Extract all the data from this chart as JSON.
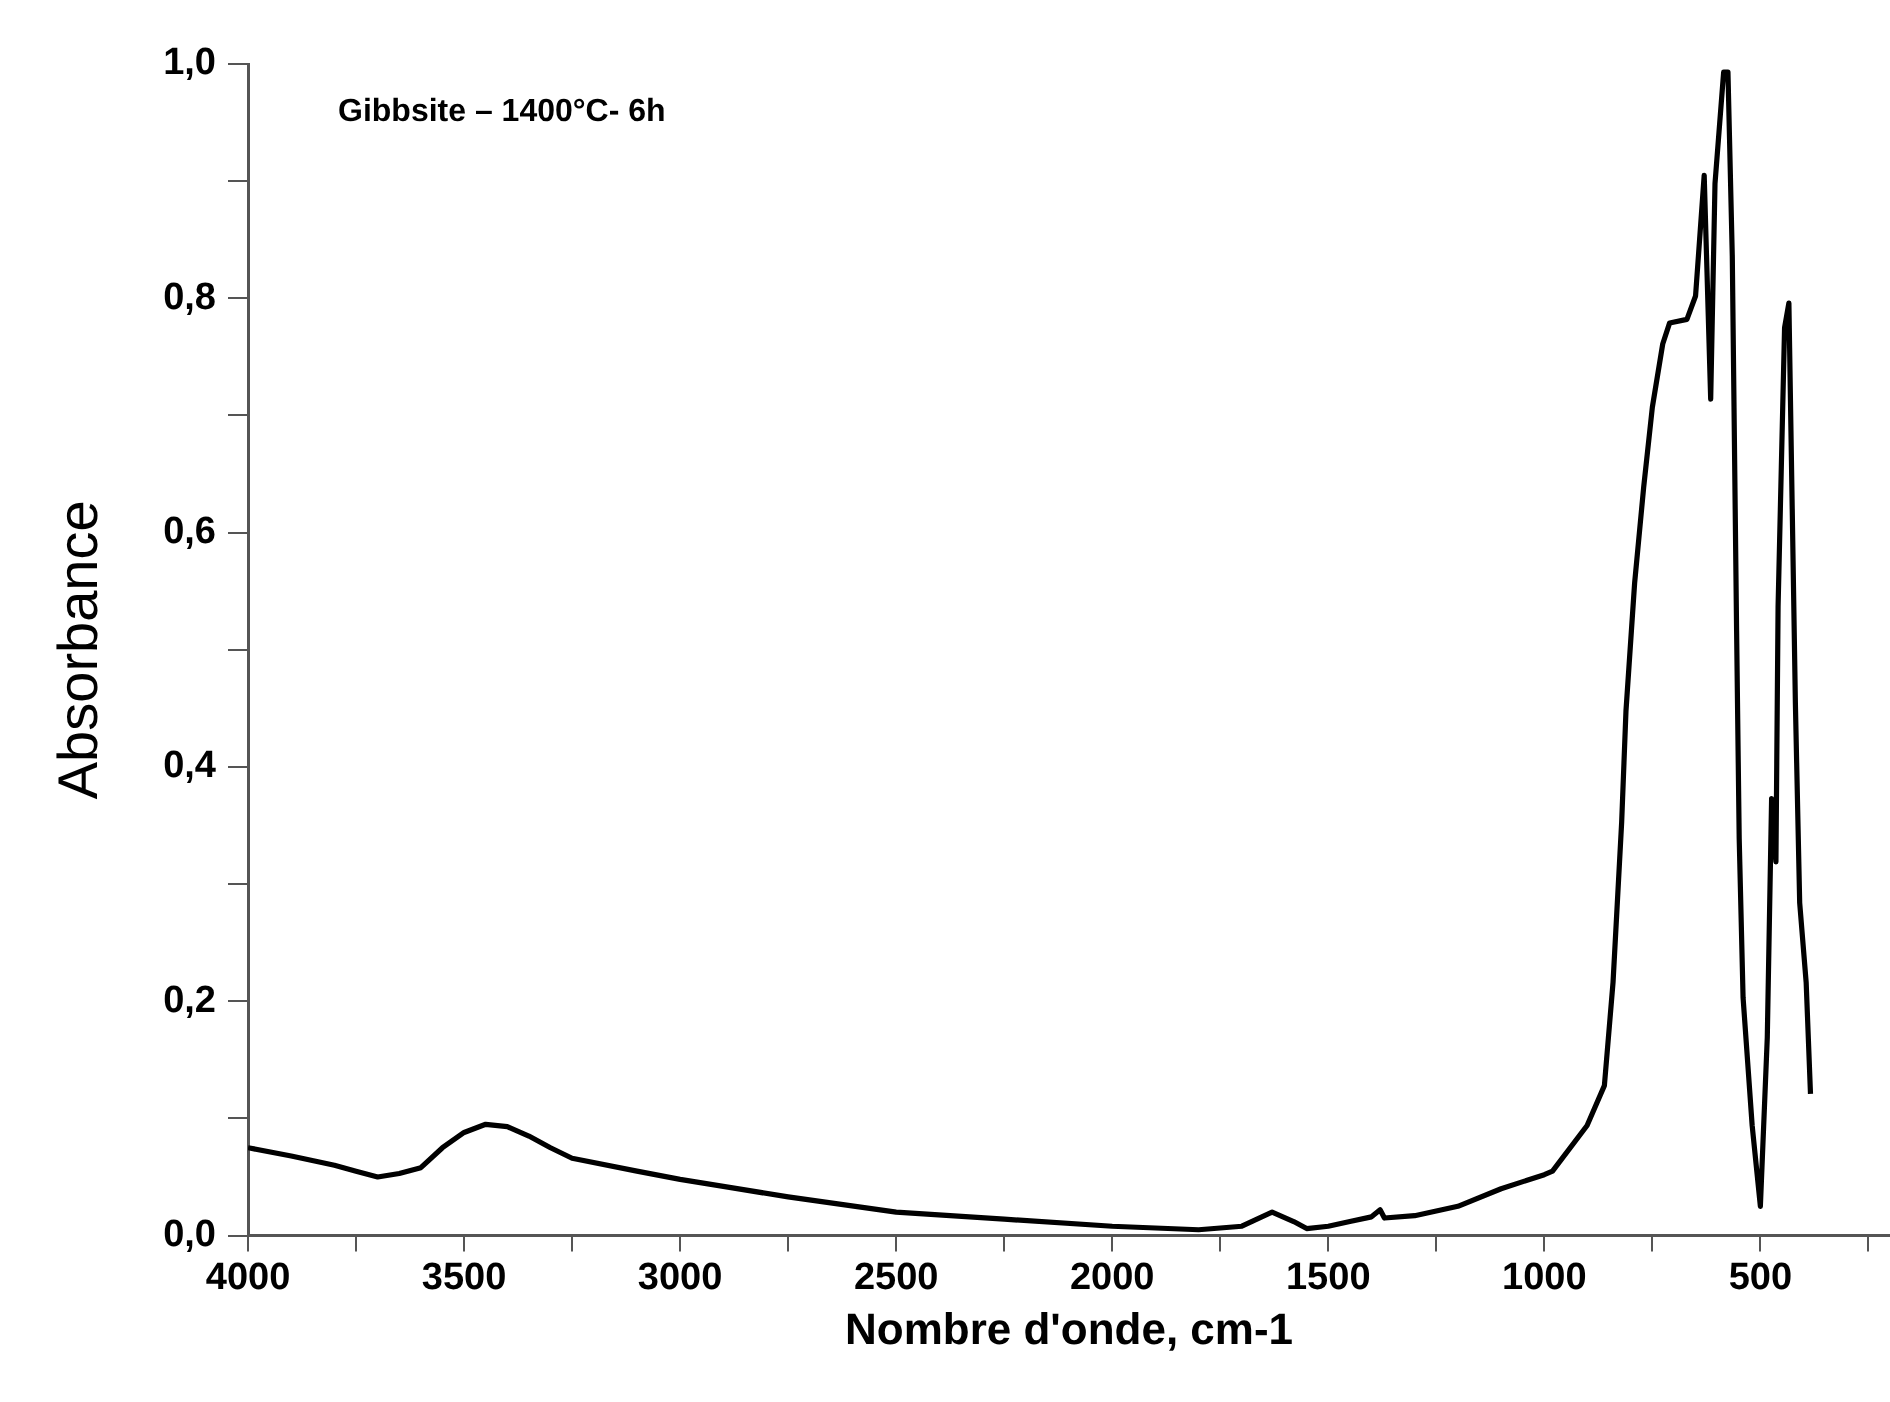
{
  "chart_data": {
    "type": "line",
    "title": "Gibbsite – 1400°C- 6h",
    "xlabel": "Nombre d'onde, cm-1",
    "ylabel": "Absorbance",
    "xlim": [
      4000,
      200
    ],
    "ylim": [
      0,
      1.0
    ],
    "xticks": [
      4000,
      {
        "value": 3750,
        "label": null
      },
      3500,
      {
        "value": 3250,
        "label": null
      },
      3000,
      {
        "value": 2750,
        "label": null
      },
      2500,
      {
        "value": 2250,
        "label": null
      },
      2000,
      {
        "value": 1750,
        "label": null
      },
      1500,
      {
        "value": 1250,
        "label": null
      },
      1000,
      {
        "value": 750,
        "label": null
      },
      500,
      {
        "value": 250,
        "label": null
      }
    ],
    "yticks": [
      {
        "value": 0,
        "label": "0,0"
      },
      {
        "value": 0.1,
        "label": null
      },
      {
        "value": 0.2,
        "label": "0,2"
      },
      {
        "value": 0.3,
        "label": null
      },
      {
        "value": 0.4,
        "label": "0,4"
      },
      {
        "value": 0.5,
        "label": null
      },
      {
        "value": 0.6,
        "label": "0,6"
      },
      {
        "value": 0.7,
        "label": null
      },
      {
        "value": 0.8,
        "label": "0,8"
      },
      {
        "value": 0.9,
        "label": null
      },
      {
        "value": 1.0,
        "label": "1,0"
      }
    ],
    "grid": false,
    "legend": false,
    "marker": "none",
    "line_style": "solid",
    "x": [
      4000,
      3900,
      3800,
      3750,
      3700,
      3650,
      3600,
      3550,
      3500,
      3450,
      3400,
      3350,
      3300,
      3250,
      3100,
      3000,
      2900,
      2750,
      2500,
      2250,
      2000,
      1800,
      1700,
      1630,
      1580,
      1550,
      1500,
      1450,
      1400,
      1380,
      1370,
      1300,
      1200,
      1100,
      1000,
      981,
      901,
      861,
      841,
      821,
      811,
      791,
      770,
      750,
      726,
      710,
      670,
      650,
      630,
      615,
      605,
      585,
      575,
      565,
      555,
      549,
      540,
      519,
      500,
      484,
      474,
      464,
      459,
      444,
      434,
      419,
      409,
      394,
      384
    ],
    "series": [
      {
        "color": "#000000",
        "values": [
          0.075,
          0.068,
          0.06,
          0.055,
          0.05,
          0.053,
          0.058,
          0.075,
          0.088,
          0.095,
          0.093,
          0.085,
          0.075,
          0.066,
          0.055,
          0.048,
          0.042,
          0.033,
          0.02,
          0.014,
          0.008,
          0.005,
          0.008,
          0.02,
          0.012,
          0.006,
          0.008,
          0.012,
          0.016,
          0.022,
          0.015,
          0.017,
          0.025,
          0.04,
          0.052,
          0.055,
          0.094,
          0.128,
          0.216,
          0.353,
          0.448,
          0.557,
          0.639,
          0.707,
          0.761,
          0.779,
          0.782,
          0.802,
          0.905,
          0.714,
          0.898,
          0.993,
          0.993,
          0.836,
          0.516,
          0.339,
          0.203,
          0.094,
          0.025,
          0.169,
          0.373,
          0.319,
          0.537,
          0.775,
          0.796,
          0.455,
          0.284,
          0.216,
          0.121
        ]
      }
    ]
  }
}
